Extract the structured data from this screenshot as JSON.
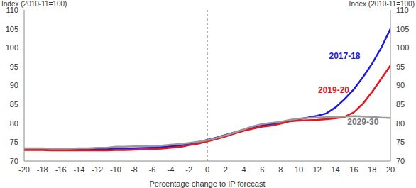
{
  "chart_data": {
    "type": "line",
    "x_label": "Percentage change to IP forecast",
    "y_label": "Index (2010-11=100)",
    "y2_label": "Index (2010-11=100)",
    "x": [
      -20,
      -19,
      -18,
      -17,
      -16,
      -15,
      -14,
      -13,
      -12,
      -11,
      -10,
      -9,
      -8,
      -7,
      -6,
      -5,
      -4,
      -3,
      -2,
      -1,
      0,
      1,
      2,
      3,
      4,
      5,
      6,
      7,
      8,
      9,
      10,
      11,
      12,
      13,
      14,
      15,
      16,
      17,
      18,
      19,
      20
    ],
    "series": [
      {
        "name": "2017-18",
        "color": "#1a1ae6",
        "values": [
          73.2,
          73.2,
          73.1,
          73.1,
          73.0,
          73.0,
          73.1,
          73.1,
          73.2,
          73.2,
          73.3,
          73.3,
          73.4,
          73.5,
          73.6,
          73.7,
          73.9,
          74.1,
          74.6,
          75.0,
          75.6,
          76.2,
          76.9,
          77.6,
          78.3,
          79.0,
          79.5,
          79.8,
          80.2,
          80.7,
          81.1,
          81.5,
          82.0,
          82.6,
          84.2,
          86.4,
          89.0,
          92.2,
          95.8,
          100.0,
          105.0
        ]
      },
      {
        "name": "2019-20",
        "color": "#e8141c",
        "values": [
          72.9,
          72.9,
          72.9,
          72.8,
          72.8,
          72.8,
          72.8,
          72.8,
          72.8,
          72.8,
          72.9,
          72.9,
          73.0,
          73.1,
          73.2,
          73.3,
          73.5,
          73.7,
          74.2,
          74.6,
          75.2,
          75.8,
          76.5,
          77.3,
          78.0,
          78.6,
          79.1,
          79.4,
          79.9,
          80.5,
          80.7,
          80.8,
          80.9,
          81.1,
          81.3,
          81.7,
          82.9,
          85.2,
          88.3,
          91.8,
          95.3
        ]
      },
      {
        "name": "2029-30",
        "color": "#9a9a9a",
        "values": [
          73.4,
          73.4,
          73.4,
          73.3,
          73.3,
          73.3,
          73.4,
          73.4,
          73.5,
          73.5,
          73.8,
          73.8,
          73.9,
          73.9,
          74.0,
          74.1,
          74.3,
          74.5,
          74.8,
          75.1,
          75.5,
          76.1,
          76.8,
          77.6,
          78.4,
          79.2,
          79.8,
          80.1,
          80.4,
          80.9,
          81.2,
          81.4,
          81.5,
          81.6,
          81.7,
          81.8,
          81.9,
          81.8,
          81.7,
          81.5,
          81.4
        ]
      }
    ],
    "annotations": [
      {
        "text": "2017-18",
        "x": 15,
        "y": 97.8,
        "color": "#1a1ae6"
      },
      {
        "text": "2019-20",
        "x": 13.8,
        "y": 88.9,
        "color": "#e8141c"
      },
      {
        "text": "2029-30",
        "x": 17,
        "y": 80.3,
        "color": "#777777"
      }
    ],
    "reference_lines": [
      {
        "x": 0,
        "line_style": "dashed"
      }
    ],
    "xlim": [
      -20,
      20
    ],
    "xticks": [
      -20,
      -18,
      -16,
      -14,
      -12,
      -10,
      -8,
      -6,
      -4,
      -2,
      0,
      2,
      4,
      6,
      8,
      10,
      12,
      14,
      16,
      18,
      20
    ],
    "ylim": [
      70,
      110
    ],
    "yticks": [
      70,
      75,
      80,
      85,
      90,
      95,
      100,
      105,
      110
    ],
    "y2lim": [
      70,
      110
    ],
    "y2ticks": [
      70,
      75,
      80,
      85,
      90,
      95,
      100,
      105,
      110
    ],
    "grid": false
  }
}
